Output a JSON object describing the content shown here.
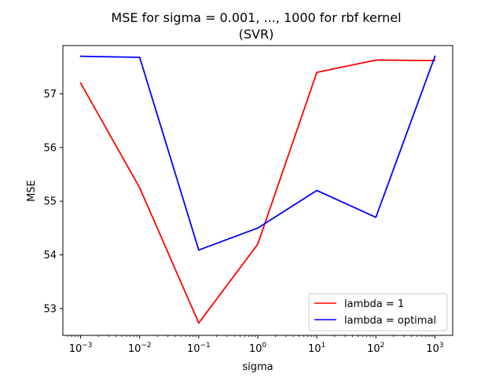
{
  "chart_data": {
    "type": "line",
    "title_line1": "MSE for sigma = 0.001, ..., 1000 for rbf kernel",
    "title_line2": "(SVR)",
    "xlabel": "sigma",
    "ylabel": "MSE",
    "xscale": "log",
    "x": [
      0.001,
      0.01,
      0.1,
      1,
      10,
      100,
      1000
    ],
    "xlim": [
      0.0005,
      2000
    ],
    "ylim": [
      52.5,
      57.9
    ],
    "yticks": [
      53,
      54,
      55,
      56,
      57
    ],
    "xtick_labels": [
      {
        "value": 0.001,
        "base": "10",
        "exp": "−3"
      },
      {
        "value": 0.01,
        "base": "10",
        "exp": "−2"
      },
      {
        "value": 0.1,
        "base": "10",
        "exp": "−1"
      },
      {
        "value": 1,
        "base": "10",
        "exp": "0"
      },
      {
        "value": 10,
        "base": "10",
        "exp": "1"
      },
      {
        "value": 100,
        "base": "10",
        "exp": "2"
      },
      {
        "value": 1000,
        "base": "10",
        "exp": "3"
      }
    ],
    "series": [
      {
        "name": "lambda = 1",
        "color": "#ff0000",
        "values": [
          57.2,
          55.25,
          52.73,
          54.2,
          57.4,
          57.63,
          57.62
        ]
      },
      {
        "name": "lambda = optimal",
        "color": "#0000ff",
        "values": [
          57.7,
          57.68,
          54.09,
          54.5,
          55.2,
          54.7,
          57.7
        ]
      }
    ],
    "legend_position": "lower-right",
    "grid": false
  }
}
